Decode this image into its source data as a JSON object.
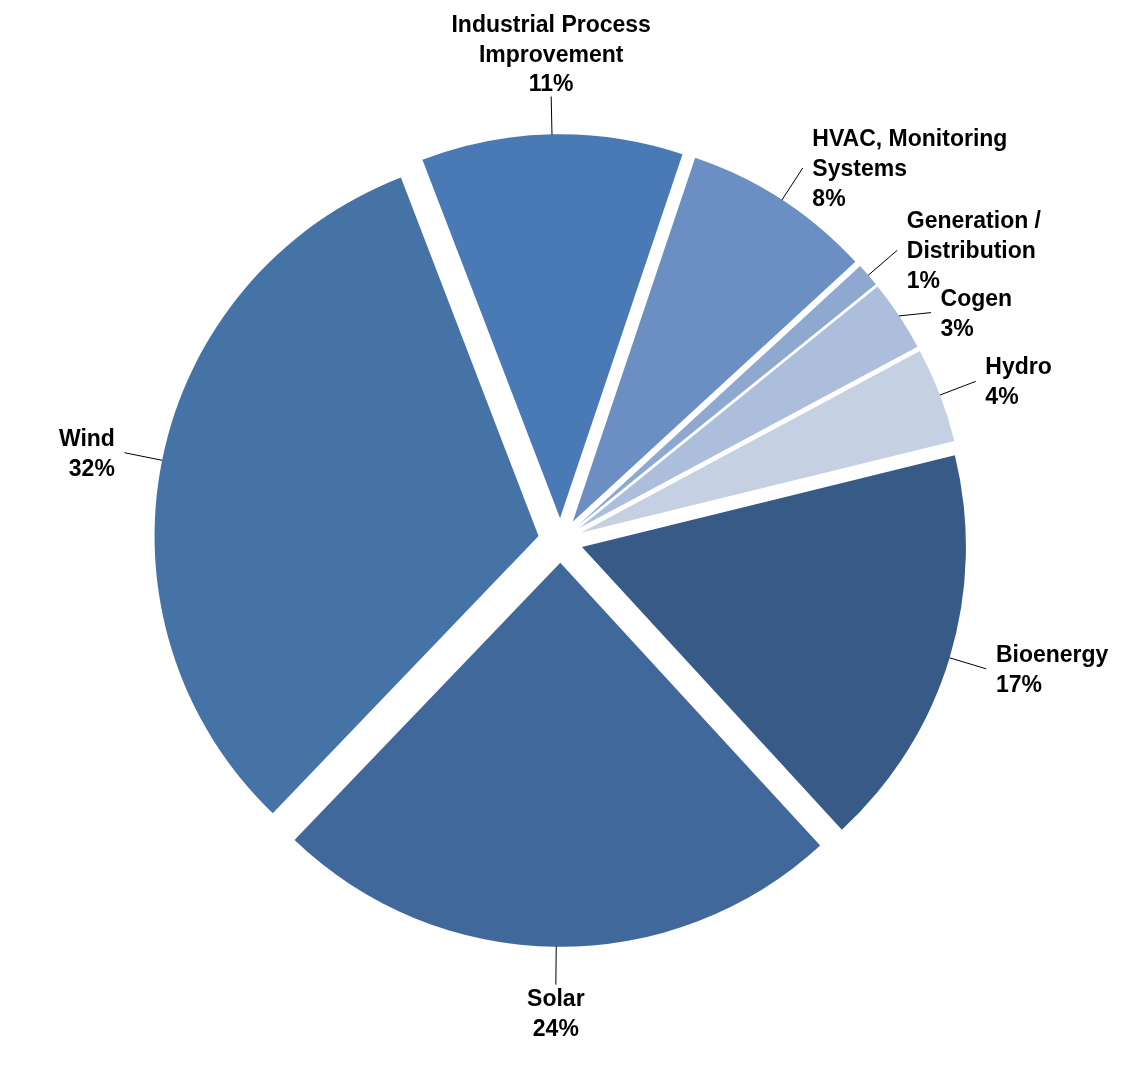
{
  "chart_data": {
    "type": "pie",
    "categories": [
      "Industrial Process\nImprovement",
      "HVAC, Monitoring\nSystems",
      "Generation /\nDistribution",
      "Cogen",
      "Hydro",
      "Bioenergy",
      "Solar",
      "Wind"
    ],
    "values": [
      11,
      8,
      1,
      3,
      4,
      17,
      24,
      32
    ],
    "colors": [
      "#4a7ab5",
      "#6b8fc3",
      "#8ea8d0",
      "#adbedc",
      "#c6d0e3",
      "#385a86",
      "#41689a",
      "#4673a6"
    ],
    "value_labels": [
      "11%",
      "8%",
      "1%",
      "3%",
      "4%",
      "17%",
      "24%",
      "32%"
    ]
  }
}
